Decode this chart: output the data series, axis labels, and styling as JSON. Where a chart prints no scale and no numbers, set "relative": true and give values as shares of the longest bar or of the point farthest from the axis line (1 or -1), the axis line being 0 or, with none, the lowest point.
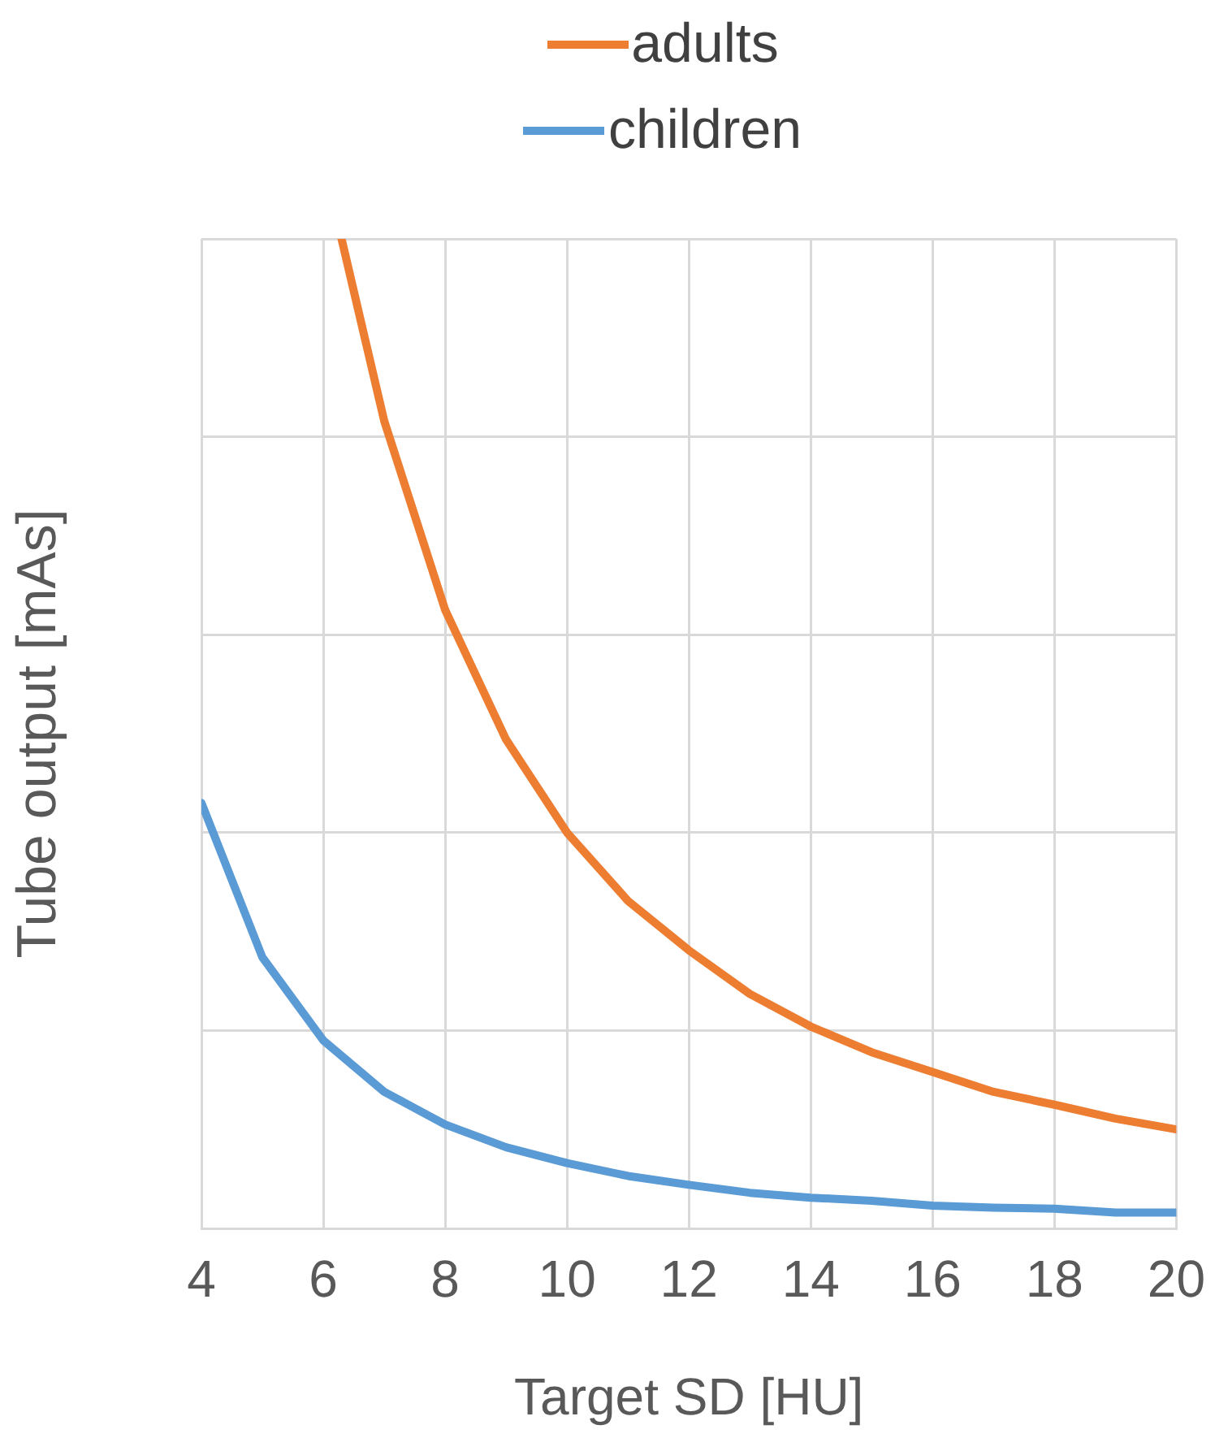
{
  "chart_data": {
    "type": "line",
    "relative": true,
    "xlabel": "Target SD [HU]",
    "ylabel": "Tube output [mAs]",
    "xlim": [
      4,
      20
    ],
    "xticks": [
      4,
      6,
      8,
      10,
      12,
      14,
      16,
      18,
      20
    ],
    "grid": true,
    "legend": "top",
    "marker": "none",
    "line_style": "solid",
    "series": [
      {
        "name": "adults",
        "color": "#ed7d31",
        "x": [
          6.3,
          7,
          8,
          9,
          10,
          11,
          12,
          13,
          14,
          15,
          16,
          17,
          18,
          19,
          20
        ],
        "values": [
          1.0,
          0.816,
          0.625,
          0.494,
          0.4,
          0.331,
          0.281,
          0.237,
          0.204,
          0.178,
          0.158,
          0.138,
          0.125,
          0.111,
          0.1
        ]
      },
      {
        "name": "children",
        "color": "#5b9bd5",
        "x": [
          4,
          5,
          6,
          7,
          8,
          9,
          10,
          11,
          12,
          13,
          14,
          15,
          16,
          17,
          18,
          19,
          20
        ],
        "values": [
          0.43,
          0.274,
          0.19,
          0.138,
          0.105,
          0.082,
          0.066,
          0.053,
          0.044,
          0.036,
          0.031,
          0.028,
          0.023,
          0.021,
          0.02,
          0.016,
          0.016
        ]
      }
    ]
  }
}
